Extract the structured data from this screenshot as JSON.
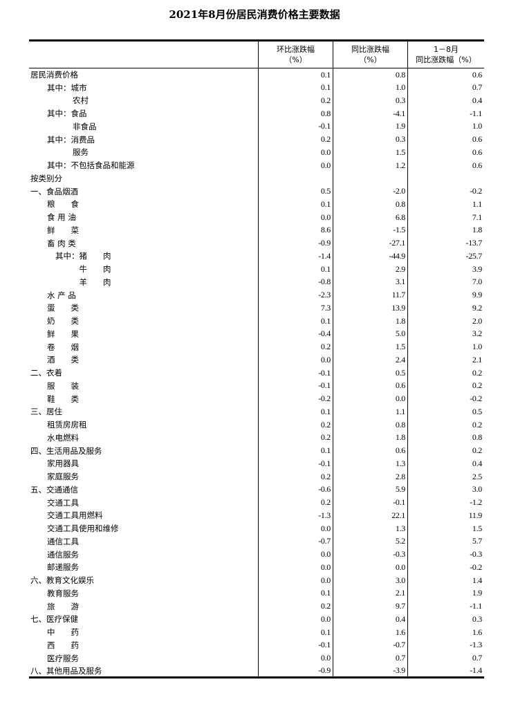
{
  "title": "2021年8月份居民消费价格主要数据",
  "headers": {
    "mom_line1": "环比涨跌幅",
    "mom_line2": "（%）",
    "yoy_line1": "同比涨跌幅",
    "yoy_line2": "（%）",
    "ytd_line1": "1－8月",
    "ytd_line2": "同比涨跌幅（%）"
  },
  "rows": [
    {
      "label": "居民消费价格",
      "level": 0,
      "mom": "0.1",
      "yoy": "0.8",
      "ytd": "0.6"
    },
    {
      "label": "其中：城市",
      "level": 1,
      "mom": "0.1",
      "yoy": "1.0",
      "ytd": "0.7"
    },
    {
      "label": "农村",
      "level": 3,
      "mom": "0.2",
      "yoy": "0.3",
      "ytd": "0.4"
    },
    {
      "label": "其中：食品",
      "level": 1,
      "mom": "0.8",
      "yoy": "-4.1",
      "ytd": "-1.1"
    },
    {
      "label": "非食品",
      "level": 3,
      "mom": "-0.1",
      "yoy": "1.9",
      "ytd": "1.0"
    },
    {
      "label": "其中：消费品",
      "level": 1,
      "mom": "0.2",
      "yoy": "0.3",
      "ytd": "0.6"
    },
    {
      "label": "服务",
      "level": 3,
      "mom": "0.0",
      "yoy": "1.5",
      "ytd": "0.6"
    },
    {
      "label": "其中：不包括食品和能源",
      "level": 1,
      "mom": "0.0",
      "yoy": "1.2",
      "ytd": "0.6"
    },
    {
      "label": "按类别分",
      "level": 0,
      "mom": "",
      "yoy": "",
      "ytd": ""
    },
    {
      "label": "一、食品烟酒",
      "level": 0,
      "mom": "0.5",
      "yoy": "-2.0",
      "ytd": "-0.2"
    },
    {
      "label": "粮　　食",
      "level": 1,
      "mom": "0.1",
      "yoy": "0.8",
      "ytd": "1.1"
    },
    {
      "label": "食 用 油",
      "level": 1,
      "mom": "0.0",
      "yoy": "6.8",
      "ytd": "7.1"
    },
    {
      "label": "鲜　　菜",
      "level": 1,
      "mom": "8.6",
      "yoy": "-1.5",
      "ytd": "1.8"
    },
    {
      "label": "畜 肉 类",
      "level": 1,
      "mom": "-0.9",
      "yoy": "-27.1",
      "ytd": "-13.7"
    },
    {
      "label": "其中：猪　　肉",
      "level": 2,
      "mom": "-1.4",
      "yoy": "-44.9",
      "ytd": "-25.7"
    },
    {
      "label": "　　　牛　　肉",
      "level": 2,
      "mom": "0.1",
      "yoy": "2.9",
      "ytd": "3.9"
    },
    {
      "label": "　　　羊　　肉",
      "level": 2,
      "mom": "-0.8",
      "yoy": "3.1",
      "ytd": "7.0"
    },
    {
      "label": "水 产 品",
      "level": 1,
      "mom": "-2.3",
      "yoy": "11.7",
      "ytd": "9.9"
    },
    {
      "label": "蛋　　类",
      "level": 1,
      "mom": "7.3",
      "yoy": "13.9",
      "ytd": "9.2"
    },
    {
      "label": "奶　　类",
      "level": 1,
      "mom": "0.1",
      "yoy": "1.8",
      "ytd": "2.0"
    },
    {
      "label": "鲜　　果",
      "level": 1,
      "mom": "-0.4",
      "yoy": "5.0",
      "ytd": "3.2"
    },
    {
      "label": "卷　　烟",
      "level": 1,
      "mom": "0.2",
      "yoy": "1.5",
      "ytd": "1.0"
    },
    {
      "label": "酒　　类",
      "level": 1,
      "mom": "0.0",
      "yoy": "2.4",
      "ytd": "2.1"
    },
    {
      "label": "二、衣着",
      "level": 0,
      "mom": "-0.1",
      "yoy": "0.5",
      "ytd": "0.2"
    },
    {
      "label": "服　　装",
      "level": 1,
      "mom": "-0.1",
      "yoy": "0.6",
      "ytd": "0.2"
    },
    {
      "label": "鞋　　类",
      "level": 1,
      "mom": "-0.2",
      "yoy": "0.0",
      "ytd": "-0.2"
    },
    {
      "label": "三、居住",
      "level": 0,
      "mom": "0.1",
      "yoy": "1.1",
      "ytd": "0.5"
    },
    {
      "label": "租赁房房租",
      "level": 1,
      "mom": "0.2",
      "yoy": "0.8",
      "ytd": "0.2"
    },
    {
      "label": "水电燃料",
      "level": 1,
      "mom": "0.2",
      "yoy": "1.8",
      "ytd": "0.8"
    },
    {
      "label": "四、生活用品及服务",
      "level": 0,
      "mom": "0.1",
      "yoy": "0.6",
      "ytd": "0.2"
    },
    {
      "label": "家用器具",
      "level": 1,
      "mom": "-0.1",
      "yoy": "1.3",
      "ytd": "0.4"
    },
    {
      "label": "家庭服务",
      "level": 1,
      "mom": "0.2",
      "yoy": "2.8",
      "ytd": "2.5"
    },
    {
      "label": "五、交通通信",
      "level": 0,
      "mom": "-0.6",
      "yoy": "5.9",
      "ytd": "3.0"
    },
    {
      "label": "交通工具",
      "level": 1,
      "mom": "0.2",
      "yoy": "-0.1",
      "ytd": "-1.2"
    },
    {
      "label": "交通工具用燃料",
      "level": 1,
      "mom": "-1.3",
      "yoy": "22.1",
      "ytd": "11.9"
    },
    {
      "label": "交通工具使用和维修",
      "level": 1,
      "mom": "0.0",
      "yoy": "1.3",
      "ytd": "1.5"
    },
    {
      "label": "通信工具",
      "level": 1,
      "mom": "-0.7",
      "yoy": "5.2",
      "ytd": "5.7"
    },
    {
      "label": "通信服务",
      "level": 1,
      "mom": "0.0",
      "yoy": "-0.3",
      "ytd": "-0.3"
    },
    {
      "label": "邮递服务",
      "level": 1,
      "mom": "0.0",
      "yoy": "0.0",
      "ytd": "-0.2"
    },
    {
      "label": "六、教育文化娱乐",
      "level": 0,
      "mom": "0.0",
      "yoy": "3.0",
      "ytd": "1.4"
    },
    {
      "label": "教育服务",
      "level": 1,
      "mom": "0.1",
      "yoy": "2.1",
      "ytd": "1.9"
    },
    {
      "label": "旅　　游",
      "level": 1,
      "mom": "0.2",
      "yoy": "9.7",
      "ytd": "-1.1"
    },
    {
      "label": "七、医疗保健",
      "level": 0,
      "mom": "0.0",
      "yoy": "0.4",
      "ytd": "0.3"
    },
    {
      "label": "中　　药",
      "level": 1,
      "mom": "0.1",
      "yoy": "1.6",
      "ytd": "1.6"
    },
    {
      "label": "西　　药",
      "level": 1,
      "mom": "-0.1",
      "yoy": "-0.7",
      "ytd": "-1.3"
    },
    {
      "label": "医疗服务",
      "level": 1,
      "mom": "0.0",
      "yoy": "0.7",
      "ytd": "0.7"
    },
    {
      "label": "八、其他用品及服务",
      "level": 0,
      "mom": "-0.9",
      "yoy": "-3.9",
      "ytd": "-1.4"
    }
  ]
}
